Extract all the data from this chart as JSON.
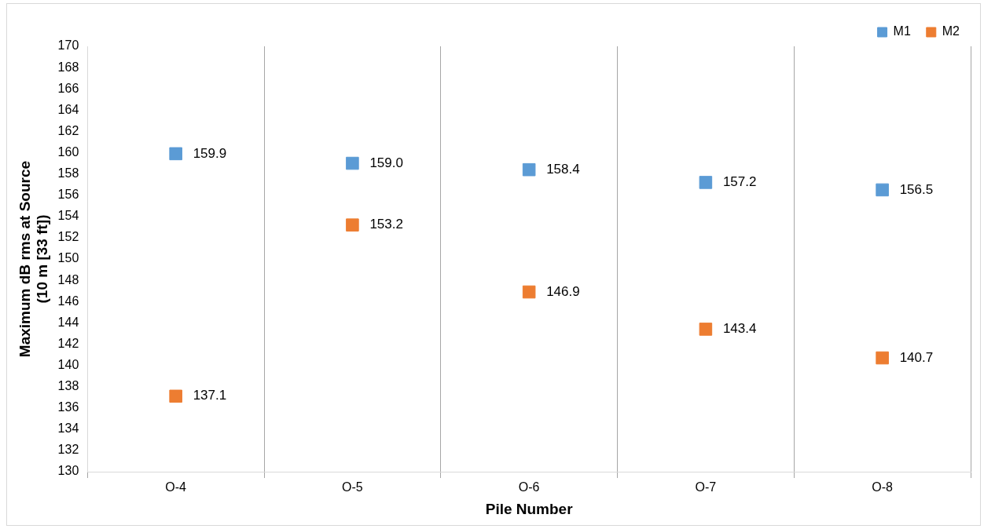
{
  "chart_data": {
    "type": "scatter",
    "xlabel": "Pile Number",
    "ylabel": "Maximum dB rms at Source\n(10 m [33 ft])",
    "categories": [
      "O-4",
      "O-5",
      "O-6",
      "O-7",
      "O-8"
    ],
    "series": [
      {
        "name": "M1",
        "color": "#5b9bd5",
        "values": [
          159.9,
          159.0,
          158.4,
          157.2,
          156.5
        ],
        "value_labels": [
          "159.9",
          "159.0",
          "158.4",
          "157.2",
          "156.5"
        ]
      },
      {
        "name": "M2",
        "color": "#ed7d31",
        "values": [
          137.1,
          153.2,
          146.9,
          143.4,
          140.7
        ],
        "value_labels": [
          "137.1",
          "153.2",
          "146.9",
          "143.4",
          "140.7"
        ]
      }
    ],
    "ylim": [
      130,
      170
    ],
    "yticks": [
      130,
      132,
      134,
      136,
      138,
      140,
      142,
      144,
      146,
      148,
      150,
      152,
      154,
      156,
      158,
      160,
      162,
      164,
      166,
      168,
      170
    ],
    "grid": "x",
    "legend": "top right",
    "marker": "square"
  }
}
